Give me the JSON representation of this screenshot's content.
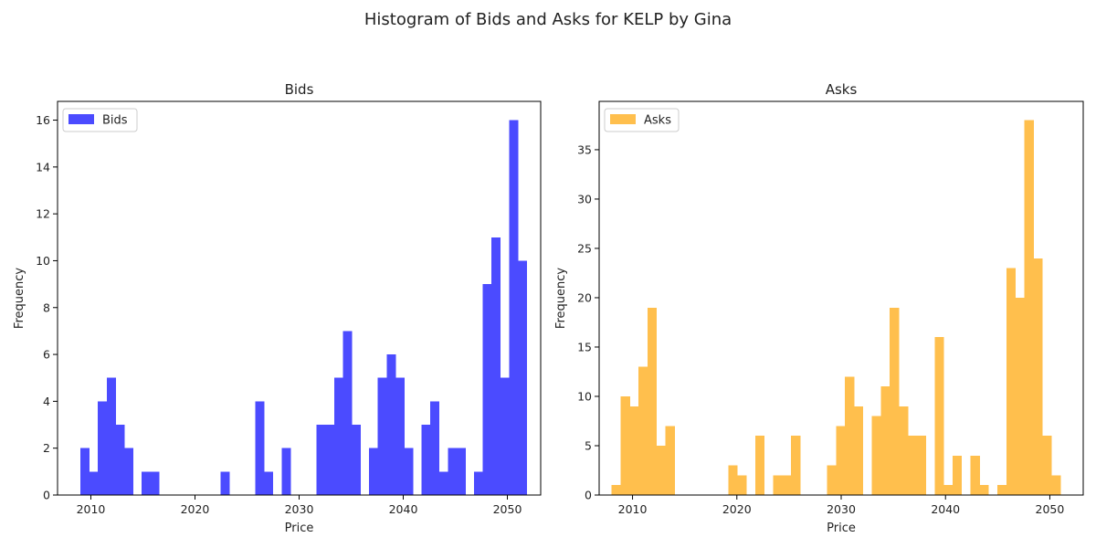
{
  "figure": {
    "title": "Histogram of Bids and Asks for KELP by Gina"
  },
  "chart_data": [
    {
      "type": "bar",
      "title": "Bids",
      "xlabel": "Price",
      "ylabel": "Frequency",
      "legend": {
        "label": "Bids",
        "placement": "top-left"
      },
      "color": "#4b4bff",
      "xlim": [
        2006.8,
        2053.2
      ],
      "ylim": [
        0,
        16.8
      ],
      "xticks": [
        2010,
        2020,
        2030,
        2040,
        2050
      ],
      "yticks": [
        0,
        2,
        4,
        6,
        8,
        10,
        12,
        14,
        16
      ],
      "bin_start": 2009,
      "bin_width": 0.84,
      "values": [
        2,
        1,
        4,
        5,
        3,
        2,
        0,
        1,
        1,
        0,
        0,
        0,
        0,
        0,
        0,
        0,
        1,
        0,
        0,
        0,
        4,
        1,
        0,
        2,
        0,
        0,
        0,
        3,
        3,
        5,
        7,
        3,
        0,
        2,
        5,
        6,
        5,
        2,
        0,
        3,
        4,
        1,
        2,
        2,
        0,
        1,
        9,
        11,
        5,
        16,
        10
      ]
    },
    {
      "type": "bar",
      "title": "Asks",
      "xlabel": "Price",
      "ylabel": "Frequency",
      "legend": {
        "label": "Asks",
        "placement": "top-left"
      },
      "color": "#ffbf4d",
      "xlim": [
        2006.8,
        2053.2
      ],
      "ylim": [
        0,
        39.9
      ],
      "xticks": [
        2010,
        2020,
        2030,
        2040,
        2050
      ],
      "yticks": [
        0,
        5,
        10,
        15,
        20,
        25,
        30,
        35
      ],
      "bin_start": 2008,
      "bin_width": 0.86,
      "values": [
        1,
        10,
        9,
        13,
        19,
        5,
        7,
        0,
        0,
        0,
        0,
        0,
        0,
        3,
        2,
        0,
        6,
        0,
        2,
        2,
        6,
        0,
        0,
        0,
        3,
        7,
        12,
        9,
        0,
        8,
        11,
        19,
        9,
        6,
        6,
        0,
        16,
        1,
        4,
        0,
        4,
        1,
        0,
        1,
        23,
        20,
        38,
        24,
        6,
        2
      ]
    }
  ]
}
